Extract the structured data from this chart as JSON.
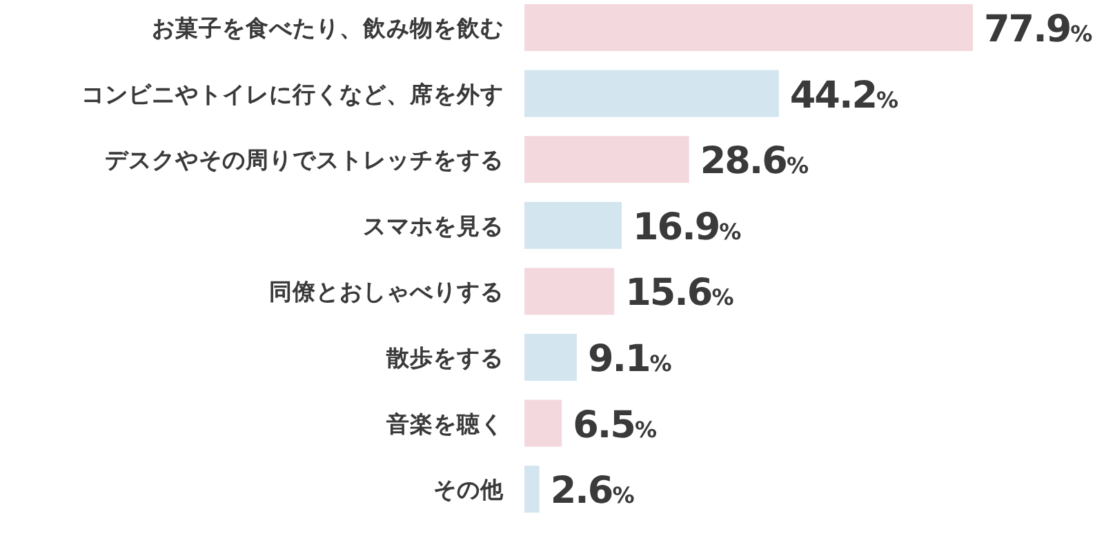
{
  "chart_data": {
    "type": "bar",
    "orientation": "horizontal",
    "categories": [
      "お菓子を食べたり、飲み物を飲む",
      "コンビニやトイレに行くなど、席を外す",
      "デスクやその周りでストレッチをする",
      "スマホを見る",
      "同僚とおしゃべりする",
      "散歩をする",
      "音楽を聴く",
      "その他"
    ],
    "values": [
      77.9,
      44.2,
      28.6,
      16.9,
      15.6,
      9.1,
      6.5,
      2.6
    ],
    "value_labels": [
      "77.9%",
      "44.2%",
      "28.6%",
      "16.9%",
      "15.6%",
      "9.1%",
      "6.5%",
      "2.6%"
    ],
    "colors": [
      "#f3d9de",
      "#d3e5ee",
      "#f3d9de",
      "#d3e5ee",
      "#f3d9de",
      "#d3e5ee",
      "#f3d9de",
      "#d3e5ee"
    ],
    "grid": false
  }
}
